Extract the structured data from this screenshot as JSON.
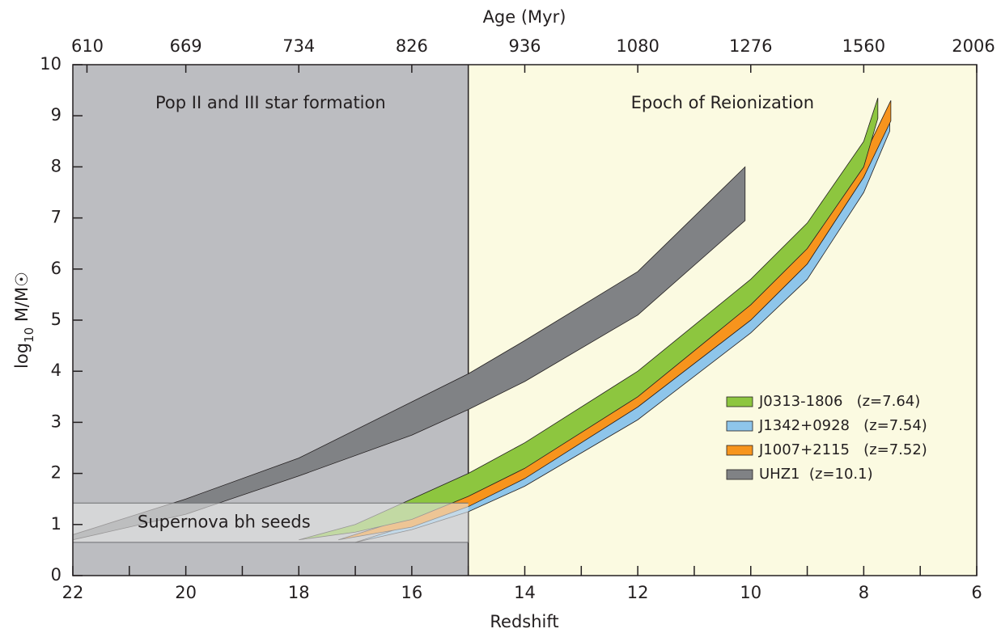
{
  "chart_data": {
    "type": "band",
    "title": "Age (Myr)",
    "x_label": "Redshift",
    "y_label": {
      "main": "log",
      "sub": "10",
      "rest": " M/M☉"
    },
    "xlim": [
      22,
      6
    ],
    "ylim": [
      0,
      10
    ],
    "xticks": [
      22,
      20,
      18,
      16,
      14,
      12,
      10,
      8,
      6
    ],
    "xminor": [
      21,
      19,
      17,
      15,
      13,
      11,
      9,
      7
    ],
    "yticks": [
      0,
      1,
      2,
      3,
      4,
      5,
      6,
      7,
      8,
      9,
      10
    ],
    "top_ticks": [
      {
        "value": 21.75,
        "label": "610"
      },
      {
        "value": 20,
        "label": "669"
      },
      {
        "value": 18,
        "label": "734"
      },
      {
        "value": 16,
        "label": "826"
      },
      {
        "value": 14,
        "label": "936"
      },
      {
        "value": 12,
        "label": "1080"
      },
      {
        "value": 10,
        "label": "1276"
      },
      {
        "value": 8,
        "label": "1560"
      },
      {
        "value": 6,
        "label": "2006"
      }
    ],
    "regions": [
      {
        "name": "Pop II and III star formation",
        "xlim": [
          22,
          15
        ],
        "ylim": [
          0,
          10
        ],
        "color": "#bcbdc1"
      },
      {
        "name": "Epoch of Reionization",
        "xlim": [
          15,
          6
        ],
        "ylim": [
          0,
          10
        ],
        "color": "#fbfae1"
      }
    ],
    "seed_band": {
      "name": "Supernova bh seeds",
      "xlim": [
        22,
        15
      ],
      "ylim": [
        0.65,
        1.42
      ]
    },
    "series": [
      {
        "name": "J0313-1806   (z=7.64)",
        "color": "#8dc63f",
        "x": [
          18,
          17,
          16,
          15,
          14,
          12,
          10,
          9,
          8,
          7.75
        ],
        "upper": [
          0.7,
          1.0,
          1.5,
          2.0,
          2.6,
          4.0,
          5.8,
          6.9,
          8.5,
          9.35
        ],
        "lower": [
          0.7,
          0.85,
          1.1,
          1.55,
          2.1,
          3.5,
          5.3,
          6.4,
          8.0,
          8.95
        ]
      },
      {
        "name": "J1342+0928   (z=7.54)",
        "color": "#8ec5ea",
        "x": [
          17,
          16,
          15,
          14,
          12,
          10,
          9,
          8,
          7.54
        ],
        "upper": [
          0.65,
          1.0,
          1.4,
          1.95,
          3.3,
          5.0,
          6.1,
          7.8,
          8.95
        ],
        "lower": [
          0.65,
          0.9,
          1.25,
          1.75,
          3.05,
          4.75,
          5.8,
          7.5,
          8.7
        ]
      },
      {
        "name": "J1007+2115   (z=7.52)",
        "color": "#f7941d",
        "x": [
          17.3,
          16,
          15,
          14,
          12,
          10,
          9,
          8,
          7.52
        ],
        "upper": [
          0.7,
          1.15,
          1.6,
          2.15,
          3.6,
          5.35,
          6.5,
          8.2,
          9.3
        ],
        "lower": [
          0.7,
          0.95,
          1.35,
          1.9,
          3.3,
          5.0,
          6.1,
          7.8,
          8.9
        ]
      },
      {
        "name": "UHZ1  (z=10.1)",
        "color": "#808285",
        "x": [
          22,
          20,
          18,
          16,
          15,
          14,
          12,
          10.1
        ],
        "upper": [
          0.8,
          1.5,
          2.3,
          3.4,
          3.95,
          4.6,
          5.95,
          8.0
        ],
        "lower": [
          0.7,
          1.2,
          1.95,
          2.75,
          3.25,
          3.8,
          5.1,
          6.95
        ]
      }
    ]
  }
}
